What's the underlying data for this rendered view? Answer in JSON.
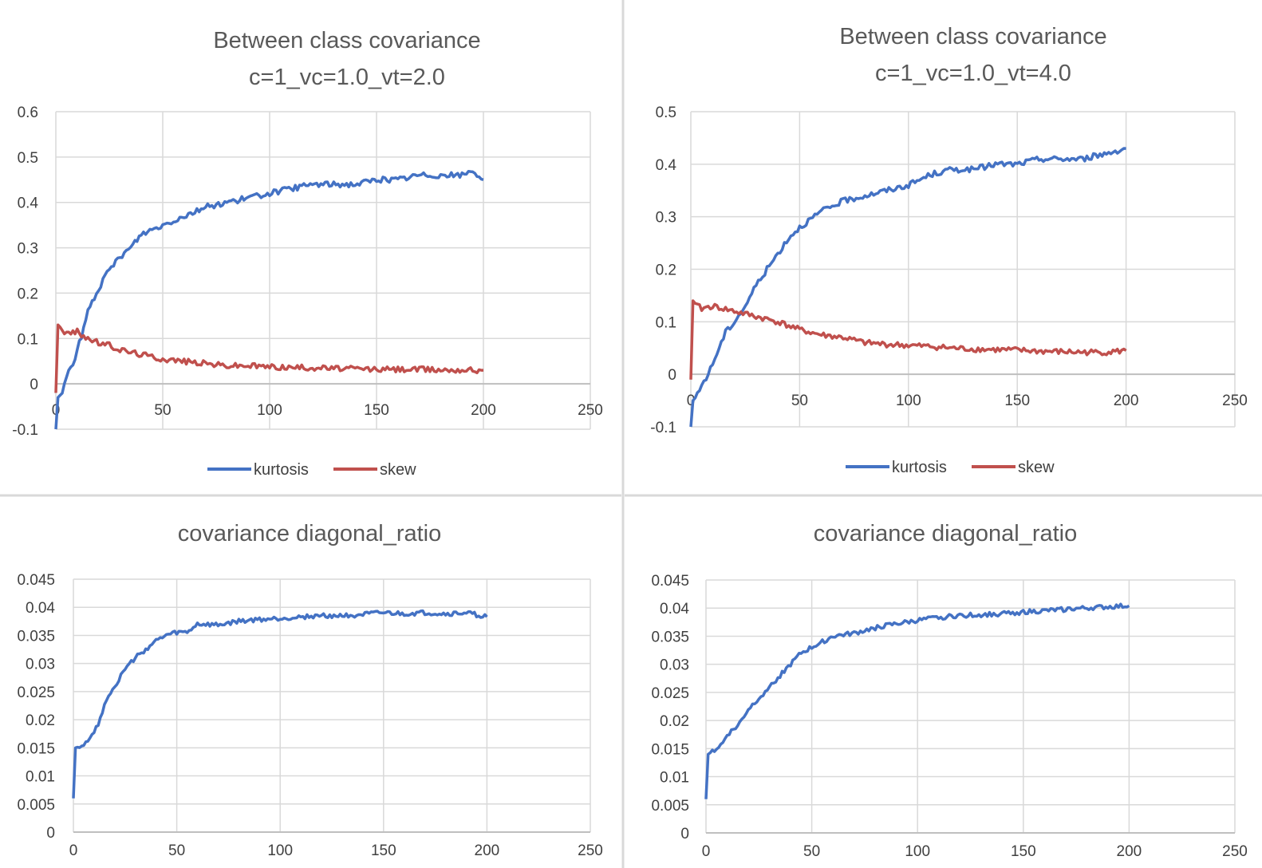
{
  "colors": {
    "kurtosis": "#4472C4",
    "skew": "#C0504D",
    "gridline": "#D9D9D9",
    "axis_text": "#404040",
    "title_text": "#595959",
    "divider": "#D9D9D9"
  },
  "chart_data": [
    {
      "type": "line",
      "title": "Between class covariance",
      "subtitle": "c=1_vc=1.0_vt=2.0",
      "xlabel": "",
      "ylabel": "",
      "xlim": [
        0,
        250
      ],
      "ylim": [
        -0.1,
        0.6
      ],
      "x_ticks": [
        0,
        50,
        100,
        150,
        200,
        250
      ],
      "y_ticks": [
        -0.1,
        0,
        0.1,
        0.2,
        0.3,
        0.4,
        0.5,
        0.6
      ],
      "grid": true,
      "legend_position": "bottom",
      "legend": [
        "kurtosis",
        "skew"
      ],
      "series": [
        {
          "name": "kurtosis",
          "color": "#4472C4",
          "points": [
            [
              0,
              -0.1
            ],
            [
              1,
              -0.03
            ],
            [
              3,
              -0.02
            ],
            [
              5,
              0.02
            ],
            [
              8,
              0.04
            ],
            [
              10,
              0.08
            ],
            [
              12,
              0.1
            ],
            [
              15,
              0.16
            ],
            [
              20,
              0.21
            ],
            [
              25,
              0.25
            ],
            [
              30,
              0.28
            ],
            [
              35,
              0.3
            ],
            [
              40,
              0.33
            ],
            [
              45,
              0.34
            ],
            [
              50,
              0.35
            ],
            [
              60,
              0.37
            ],
            [
              70,
              0.39
            ],
            [
              80,
              0.4
            ],
            [
              90,
              0.41
            ],
            [
              100,
              0.42
            ],
            [
              110,
              0.43
            ],
            [
              120,
              0.44
            ],
            [
              130,
              0.44
            ],
            [
              140,
              0.44
            ],
            [
              150,
              0.45
            ],
            [
              160,
              0.45
            ],
            [
              170,
              0.46
            ],
            [
              180,
              0.46
            ],
            [
              190,
              0.46
            ],
            [
              195,
              0.47
            ],
            [
              200,
              0.45
            ]
          ]
        },
        {
          "name": "skew",
          "color": "#C0504D",
          "points": [
            [
              0,
              -0.02
            ],
            [
              1,
              0.13
            ],
            [
              3,
              0.12
            ],
            [
              5,
              0.11
            ],
            [
              10,
              0.115
            ],
            [
              15,
              0.1
            ],
            [
              20,
              0.09
            ],
            [
              25,
              0.085
            ],
            [
              30,
              0.075
            ],
            [
              35,
              0.07
            ],
            [
              40,
              0.065
            ],
            [
              50,
              0.055
            ],
            [
              60,
              0.05
            ],
            [
              70,
              0.045
            ],
            [
              80,
              0.04
            ],
            [
              90,
              0.04
            ],
            [
              100,
              0.038
            ],
            [
              110,
              0.036
            ],
            [
              120,
              0.036
            ],
            [
              130,
              0.034
            ],
            [
              140,
              0.033
            ],
            [
              150,
              0.032
            ],
            [
              160,
              0.032
            ],
            [
              170,
              0.032
            ],
            [
              180,
              0.031
            ],
            [
              190,
              0.031
            ],
            [
              200,
              0.03
            ]
          ]
        }
      ]
    },
    {
      "type": "line",
      "title": "Between class covariance",
      "subtitle": "c=1_vc=1.0_vt=4.0",
      "xlabel": "",
      "ylabel": "",
      "xlim": [
        0,
        250
      ],
      "ylim": [
        -0.1,
        0.5
      ],
      "x_ticks": [
        0,
        50,
        100,
        150,
        200,
        250
      ],
      "y_ticks": [
        -0.1,
        0,
        0.1,
        0.2,
        0.3,
        0.4,
        0.5
      ],
      "grid": true,
      "legend_position": "bottom",
      "legend": [
        "kurtosis",
        "skew"
      ],
      "series": [
        {
          "name": "kurtosis",
          "color": "#4472C4",
          "points": [
            [
              0,
              -0.1
            ],
            [
              1,
              -0.05
            ],
            [
              3,
              -0.04
            ],
            [
              5,
              -0.02
            ],
            [
              8,
              0.0
            ],
            [
              10,
              0.02
            ],
            [
              13,
              0.05
            ],
            [
              16,
              0.08
            ],
            [
              20,
              0.1
            ],
            [
              25,
              0.13
            ],
            [
              30,
              0.17
            ],
            [
              35,
              0.2
            ],
            [
              40,
              0.23
            ],
            [
              45,
              0.26
            ],
            [
              50,
              0.28
            ],
            [
              60,
              0.31
            ],
            [
              70,
              0.33
            ],
            [
              80,
              0.34
            ],
            [
              90,
              0.35
            ],
            [
              100,
              0.36
            ],
            [
              110,
              0.38
            ],
            [
              120,
              0.39
            ],
            [
              130,
              0.39
            ],
            [
              140,
              0.4
            ],
            [
              150,
              0.4
            ],
            [
              160,
              0.41
            ],
            [
              170,
              0.41
            ],
            [
              180,
              0.41
            ],
            [
              190,
              0.42
            ],
            [
              200,
              0.43
            ]
          ]
        },
        {
          "name": "skew",
          "color": "#C0504D",
          "points": [
            [
              0,
              -0.01
            ],
            [
              1,
              0.14
            ],
            [
              3,
              0.13
            ],
            [
              5,
              0.125
            ],
            [
              10,
              0.13
            ],
            [
              15,
              0.125
            ],
            [
              20,
              0.12
            ],
            [
              25,
              0.115
            ],
            [
              30,
              0.11
            ],
            [
              35,
              0.105
            ],
            [
              40,
              0.1
            ],
            [
              50,
              0.085
            ],
            [
              60,
              0.075
            ],
            [
              70,
              0.07
            ],
            [
              80,
              0.06
            ],
            [
              90,
              0.057
            ],
            [
              100,
              0.055
            ],
            [
              110,
              0.053
            ],
            [
              120,
              0.05
            ],
            [
              130,
              0.048
            ],
            [
              140,
              0.047
            ],
            [
              150,
              0.046
            ],
            [
              160,
              0.044
            ],
            [
              170,
              0.043
            ],
            [
              180,
              0.042
            ],
            [
              190,
              0.042
            ],
            [
              200,
              0.045
            ]
          ]
        }
      ]
    },
    {
      "type": "line",
      "title": "covariance diagonal_ratio",
      "subtitle": "",
      "xlabel": "",
      "ylabel": "",
      "xlim": [
        0,
        250
      ],
      "ylim": [
        0,
        0.045
      ],
      "x_ticks": [
        0,
        50,
        100,
        150,
        200,
        250
      ],
      "y_ticks": [
        0,
        0.005,
        0.01,
        0.015,
        0.02,
        0.025,
        0.03,
        0.035,
        0.04,
        0.045
      ],
      "grid": true,
      "legend_position": "none",
      "legend": [],
      "series": [
        {
          "name": "diagonal_ratio",
          "color": "#4472C4",
          "points": [
            [
              0,
              0.006
            ],
            [
              1,
              0.015
            ],
            [
              3,
              0.0152
            ],
            [
              5,
              0.0158
            ],
            [
              8,
              0.0165
            ],
            [
              10,
              0.018
            ],
            [
              13,
              0.02
            ],
            [
              15,
              0.023
            ],
            [
              20,
              0.026
            ],
            [
              25,
              0.029
            ],
            [
              30,
              0.031
            ],
            [
              35,
              0.0325
            ],
            [
              40,
              0.034
            ],
            [
              45,
              0.035
            ],
            [
              50,
              0.0355
            ],
            [
              55,
              0.0355
            ],
            [
              60,
              0.037
            ],
            [
              70,
              0.0368
            ],
            [
              80,
              0.0375
            ],
            [
              90,
              0.0378
            ],
            [
              100,
              0.038
            ],
            [
              110,
              0.0383
            ],
            [
              120,
              0.0385
            ],
            [
              130,
              0.0385
            ],
            [
              140,
              0.0387
            ],
            [
              150,
              0.039
            ],
            [
              160,
              0.0388
            ],
            [
              170,
              0.039
            ],
            [
              180,
              0.0388
            ],
            [
              190,
              0.039
            ],
            [
              200,
              0.0383
            ]
          ]
        }
      ]
    },
    {
      "type": "line",
      "title": "covariance diagonal_ratio",
      "subtitle": "",
      "xlabel": "",
      "ylabel": "",
      "xlim": [
        0,
        250
      ],
      "ylim": [
        0,
        0.045
      ],
      "x_ticks": [
        0,
        50,
        100,
        150,
        200,
        250
      ],
      "y_ticks": [
        0,
        0.005,
        0.01,
        0.015,
        0.02,
        0.025,
        0.03,
        0.035,
        0.04,
        0.045
      ],
      "grid": true,
      "legend_position": "none",
      "legend": [],
      "series": [
        {
          "name": "diagonal_ratio",
          "color": "#4472C4",
          "points": [
            [
              0,
              0.006
            ],
            [
              1,
              0.014
            ],
            [
              3,
              0.0145
            ],
            [
              5,
              0.015
            ],
            [
              8,
              0.016
            ],
            [
              10,
              0.0175
            ],
            [
              15,
              0.019
            ],
            [
              20,
              0.022
            ],
            [
              25,
              0.024
            ],
            [
              30,
              0.026
            ],
            [
              35,
              0.028
            ],
            [
              40,
              0.03
            ],
            [
              45,
              0.032
            ],
            [
              50,
              0.033
            ],
            [
              55,
              0.034
            ],
            [
              60,
              0.035
            ],
            [
              70,
              0.0355
            ],
            [
              80,
              0.0365
            ],
            [
              90,
              0.0372
            ],
            [
              100,
              0.0378
            ],
            [
              110,
              0.0383
            ],
            [
              120,
              0.0387
            ],
            [
              130,
              0.0388
            ],
            [
              140,
              0.039
            ],
            [
              150,
              0.0393
            ],
            [
              160,
              0.0395
            ],
            [
              170,
              0.0398
            ],
            [
              180,
              0.04
            ],
            [
              190,
              0.0402
            ],
            [
              200,
              0.0404
            ]
          ]
        }
      ]
    }
  ]
}
